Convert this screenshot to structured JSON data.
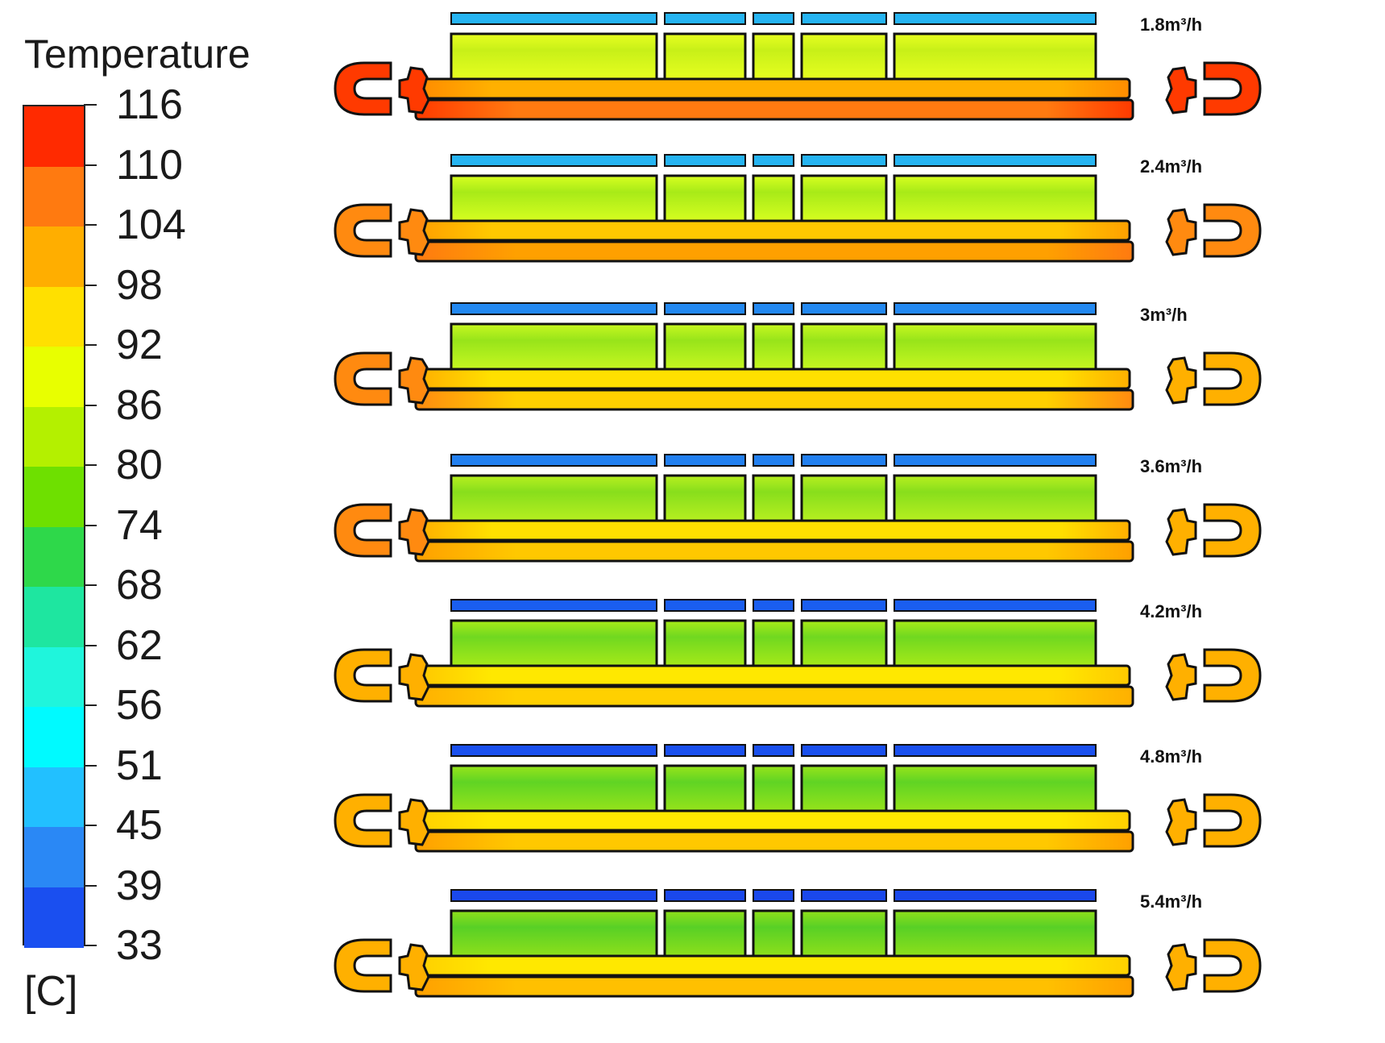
{
  "legend": {
    "title": "Temperature",
    "unit": "[C]",
    "ticks": [
      "116",
      "110",
      "104",
      "98",
      "92",
      "86",
      "80",
      "74",
      "68",
      "62",
      "56",
      "51",
      "45",
      "39",
      "33"
    ],
    "band_colors": [
      "#ff2a00",
      "#ff7a10",
      "#ffae00",
      "#ffe000",
      "#e8ff00",
      "#b4f000",
      "#6ee000",
      "#2ed84a",
      "#1ee6a0",
      "#1ff5dc",
      "#00faff",
      "#22c0ff",
      "#2a88f5",
      "#1a4ff0"
    ]
  },
  "cases": [
    {
      "flow_label": "1.8m³/h",
      "top_channel": "#26b4f2",
      "fin": "#c8f018",
      "fin_edge": "#e8ff20",
      "rail_upper": "#ffb000",
      "rail_upper_ends": "#ff8c00",
      "rail_lower": "#ff7a10",
      "rail_lower_ends": "#ff3a00",
      "left_end": "#ff3a00",
      "right_end": "#ff3a00"
    },
    {
      "flow_label": "2.4m³/h",
      "top_channel": "#26b4f2",
      "fin": "#a8ea18",
      "fin_edge": "#d8ff20",
      "rail_upper": "#ffc800",
      "rail_upper_ends": "#ffa000",
      "rail_lower": "#ffa000",
      "rail_lower_ends": "#ff7a10",
      "left_end": "#ff8a10",
      "right_end": "#ff8a10"
    },
    {
      "flow_label": "3m³/h",
      "top_channel": "#2288f0",
      "fin": "#98e41a",
      "fin_edge": "#c8f820",
      "rail_upper": "#ffe000",
      "rail_upper_ends": "#ffb000",
      "rail_lower": "#ffd000",
      "rail_lower_ends": "#ff8a10",
      "left_end": "#ff8a10",
      "right_end": "#ffb000"
    },
    {
      "flow_label": "3.6m³/h",
      "top_channel": "#2280f0",
      "fin": "#88de1c",
      "fin_edge": "#b8f020",
      "rail_upper": "#ffe000",
      "rail_upper_ends": "#ffb000",
      "rail_lower": "#ffc800",
      "rail_lower_ends": "#ffa000",
      "left_end": "#ff8a10",
      "right_end": "#ffb000"
    },
    {
      "flow_label": "4.2m³/h",
      "top_channel": "#1a5ef0",
      "fin": "#70d820",
      "fin_edge": "#a8ea18",
      "rail_upper": "#ffe800",
      "rail_upper_ends": "#ffc800",
      "rail_lower": "#ffd000",
      "rail_lower_ends": "#ffb000",
      "left_end": "#ffb000",
      "right_end": "#ffb000"
    },
    {
      "flow_label": "4.8m³/h",
      "top_channel": "#1a50ee",
      "fin": "#60d424",
      "fin_edge": "#98e41a",
      "rail_upper": "#ffe800",
      "rail_upper_ends": "#ffd000",
      "rail_lower": "#ffc800",
      "rail_lower_ends": "#ffa000",
      "left_end": "#ffb000",
      "right_end": "#ffb000"
    },
    {
      "flow_label": "5.4m³/h",
      "top_channel": "#1a48ec",
      "fin": "#58d026",
      "fin_edge": "#90e01a",
      "rail_upper": "#ffe800",
      "rail_upper_ends": "#ffd000",
      "rail_lower": "#ffc000",
      "rail_lower_ends": "#ffa000",
      "left_end": "#ffb000",
      "right_end": "#ffb000"
    }
  ]
}
